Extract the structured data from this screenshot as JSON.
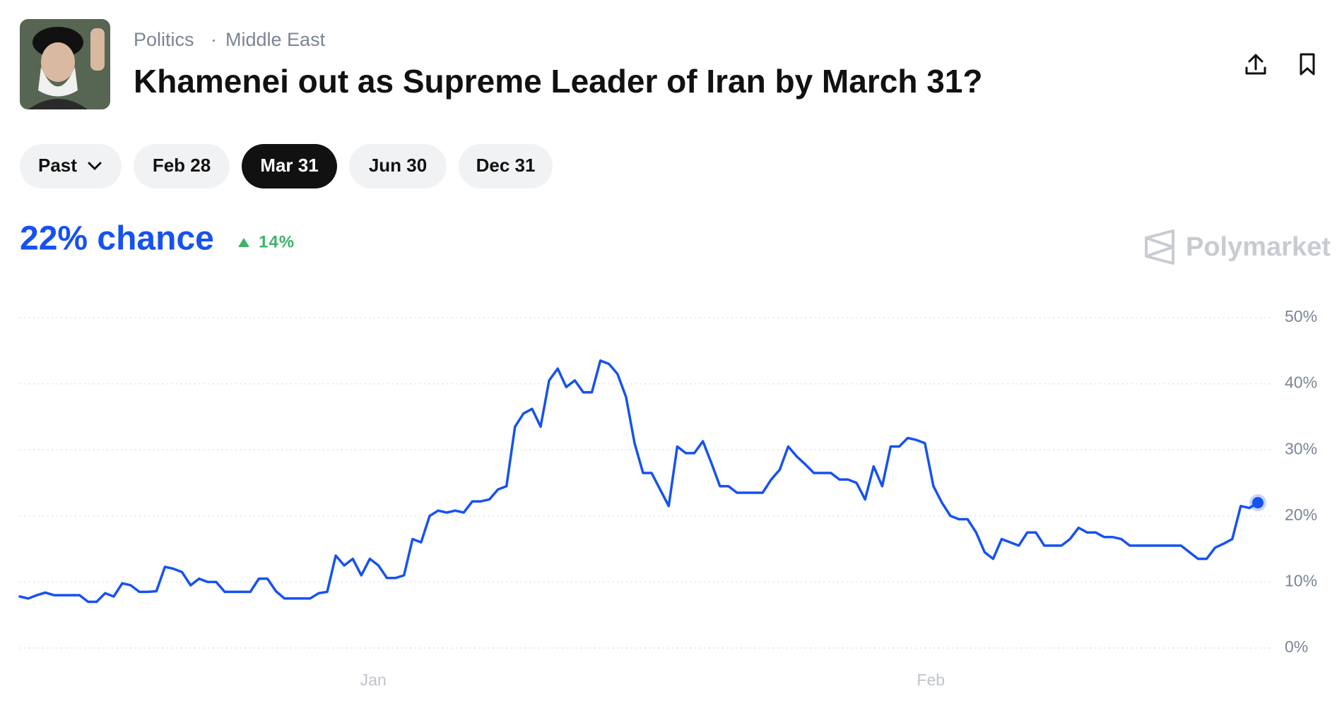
{
  "header": {
    "breadcrumb": [
      "Politics",
      "Middle East"
    ],
    "title": "Khamenei out as Supreme Leader of Iran by March 31?"
  },
  "filters": [
    "Past",
    "Feb 28",
    "Mar 31",
    "Jun 30",
    "Dec 31"
  ],
  "summary": {
    "chance": "22% chance",
    "change": "14%"
  },
  "brand": "Polymarket",
  "chart_data": {
    "type": "line",
    "color": "#1652f0",
    "grid": true,
    "values": [
      7.8,
      7.5,
      8,
      8.4,
      8,
      8,
      8,
      8,
      7,
      7,
      8.3,
      7.8,
      9.8,
      9.5,
      8.5,
      8.5,
      8.6,
      12.3,
      12,
      11.5,
      9.5,
      10.5,
      10,
      10,
      8.5,
      8.5,
      8.5,
      8.5,
      10.5,
      10.5,
      8.6,
      7.5,
      7.5,
      7.5,
      7.5,
      8.3,
      8.5,
      14,
      12.5,
      13.5,
      11,
      13.5,
      12.5,
      10.6,
      10.6,
      11,
      16.5,
      16,
      20,
      20.8,
      20.5,
      20.8,
      20.5,
      22.2,
      22.2,
      22.5,
      24,
      24.5,
      33.5,
      35.5,
      36.2,
      33.5,
      40.5,
      42.3,
      39.5,
      40.5,
      38.7,
      38.7,
      43.5,
      43,
      41.5,
      38,
      31,
      26.5,
      26.5,
      24,
      21.5,
      30.5,
      29.5,
      29.5,
      31.3,
      28,
      24.5,
      24.5,
      23.5,
      23.5,
      23.5,
      23.5,
      25.5,
      27,
      30.5,
      29,
      27.8,
      26.5,
      26.5,
      26.5,
      25.5,
      25.5,
      25,
      22.5,
      27.5,
      24.5,
      30.5,
      30.5,
      31.8,
      31.5,
      31,
      24.5,
      22,
      20,
      19.5,
      19.5,
      17.5,
      14.5,
      13.5,
      16.5,
      16,
      15.5,
      17.5,
      17.5,
      15.5,
      15.5,
      15.5,
      16.5,
      18.2,
      17.5,
      17.5,
      16.8,
      16.8,
      16.5,
      15.5,
      15.5,
      15.5,
      15.5,
      15.5,
      15.5,
      15.5,
      14.5,
      13.5,
      13.5,
      15.2,
      15.8,
      16.5,
      21.5,
      21.2,
      22
    ],
    "xticks": [
      {
        "value": 41.4,
        "label": "Jan"
      },
      {
        "value": 106.7,
        "label": "Feb"
      }
    ],
    "ylim": [
      0,
      50
    ],
    "yticks": [
      {
        "value": 0,
        "label": "0%"
      },
      {
        "value": 10,
        "label": "10%"
      },
      {
        "value": 20,
        "label": "20%"
      },
      {
        "value": 30,
        "label": "30%"
      },
      {
        "value": 40,
        "label": "40%"
      },
      {
        "value": 50,
        "label": "50%"
      }
    ]
  }
}
